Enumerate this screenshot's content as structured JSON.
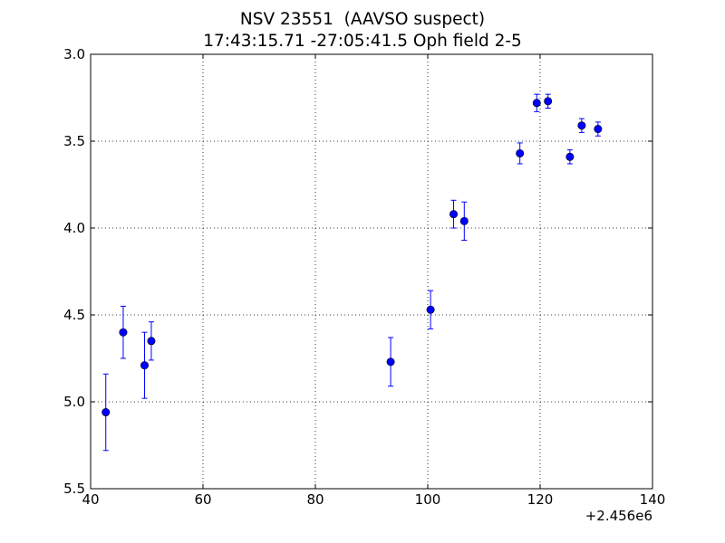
{
  "chart_data": {
    "type": "scatter",
    "title": "NSV 23551  (AAVSO suspect)",
    "subtitle": "17:43:15.71 -27:05:41.5 Oph field 2-5",
    "xlabel": "",
    "ylabel": "",
    "x_offset_label": "+2.456e6",
    "xlim": [
      40,
      140
    ],
    "ylim": [
      5.5,
      3.0
    ],
    "y_inverted": true,
    "grid": true,
    "x_ticks": [
      40,
      60,
      80,
      100,
      120,
      140
    ],
    "x_tick_labels": [
      "40",
      "60",
      "80",
      "100",
      "120",
      "140"
    ],
    "y_ticks": [
      3.0,
      3.5,
      4.0,
      4.5,
      5.0,
      5.5
    ],
    "y_tick_labels": [
      "3.0",
      "3.5",
      "4.0",
      "4.5",
      "5.0",
      "5.5"
    ],
    "series_color": "#0000ff",
    "points": [
      {
        "x": 42.7,
        "y": 5.06,
        "err": 0.22
      },
      {
        "x": 45.8,
        "y": 4.6,
        "err": 0.15
      },
      {
        "x": 49.6,
        "y": 4.79,
        "err": 0.19
      },
      {
        "x": 50.8,
        "y": 4.65,
        "err": 0.11
      },
      {
        "x": 93.4,
        "y": 4.77,
        "err": 0.14
      },
      {
        "x": 100.5,
        "y": 4.47,
        "err": 0.11
      },
      {
        "x": 104.6,
        "y": 3.92,
        "err": 0.08
      },
      {
        "x": 106.5,
        "y": 3.96,
        "err": 0.11
      },
      {
        "x": 116.4,
        "y": 3.57,
        "err": 0.06
      },
      {
        "x": 119.4,
        "y": 3.28,
        "err": 0.05
      },
      {
        "x": 121.4,
        "y": 3.27,
        "err": 0.04
      },
      {
        "x": 125.3,
        "y": 3.59,
        "err": 0.04
      },
      {
        "x": 127.4,
        "y": 3.41,
        "err": 0.04
      },
      {
        "x": 130.3,
        "y": 3.43,
        "err": 0.04
      }
    ]
  }
}
